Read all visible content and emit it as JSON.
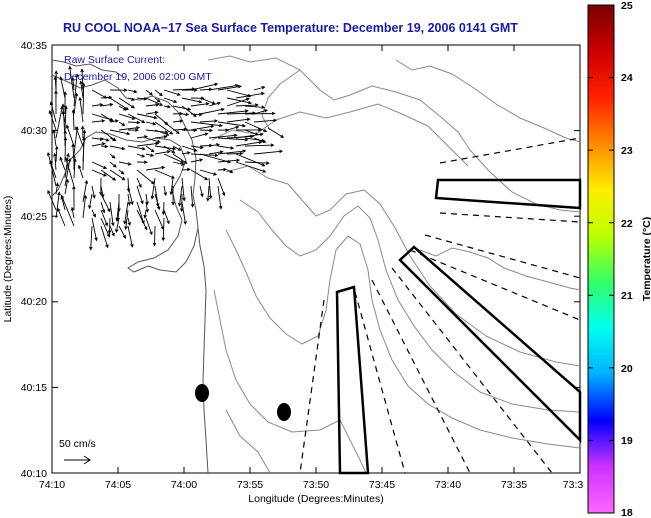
{
  "title": "RU COOL  NOAA−17  Sea Surface Temperature:  December 19, 2006 0141 GMT",
  "annotation": {
    "line1": "Raw Surface Current:",
    "line2": "December 19, 2006 02:00 GMT"
  },
  "scale": {
    "label": "50 cm/s"
  },
  "axes": {
    "xlabel": "Longitude (Degrees:Minutes)",
    "ylabel": "Latitude (Degrees:Minutes)",
    "x_ticks": [
      "74:10",
      "74:05",
      "74:00",
      "73:55",
      "73:50",
      "73:45",
      "73:40",
      "73:35",
      "73:3"
    ],
    "y_ticks": [
      "40:35",
      "40:30",
      "40:25",
      "40:20",
      "40:15",
      "40:10"
    ]
  },
  "colorbar": {
    "label": "Temperature (°C)",
    "ticks": [
      "25",
      "24",
      "23",
      "22",
      "21",
      "20",
      "19",
      "18"
    ],
    "min": 18,
    "max": 25,
    "colors": [
      "#ff66ff",
      "#cc33ff",
      "#0000ff",
      "#00b0ff",
      "#00ffee",
      "#33ff66",
      "#bbff00",
      "#ffee00",
      "#ff8800",
      "#ff2200",
      "#cc0000",
      "#7a0000"
    ]
  }
}
